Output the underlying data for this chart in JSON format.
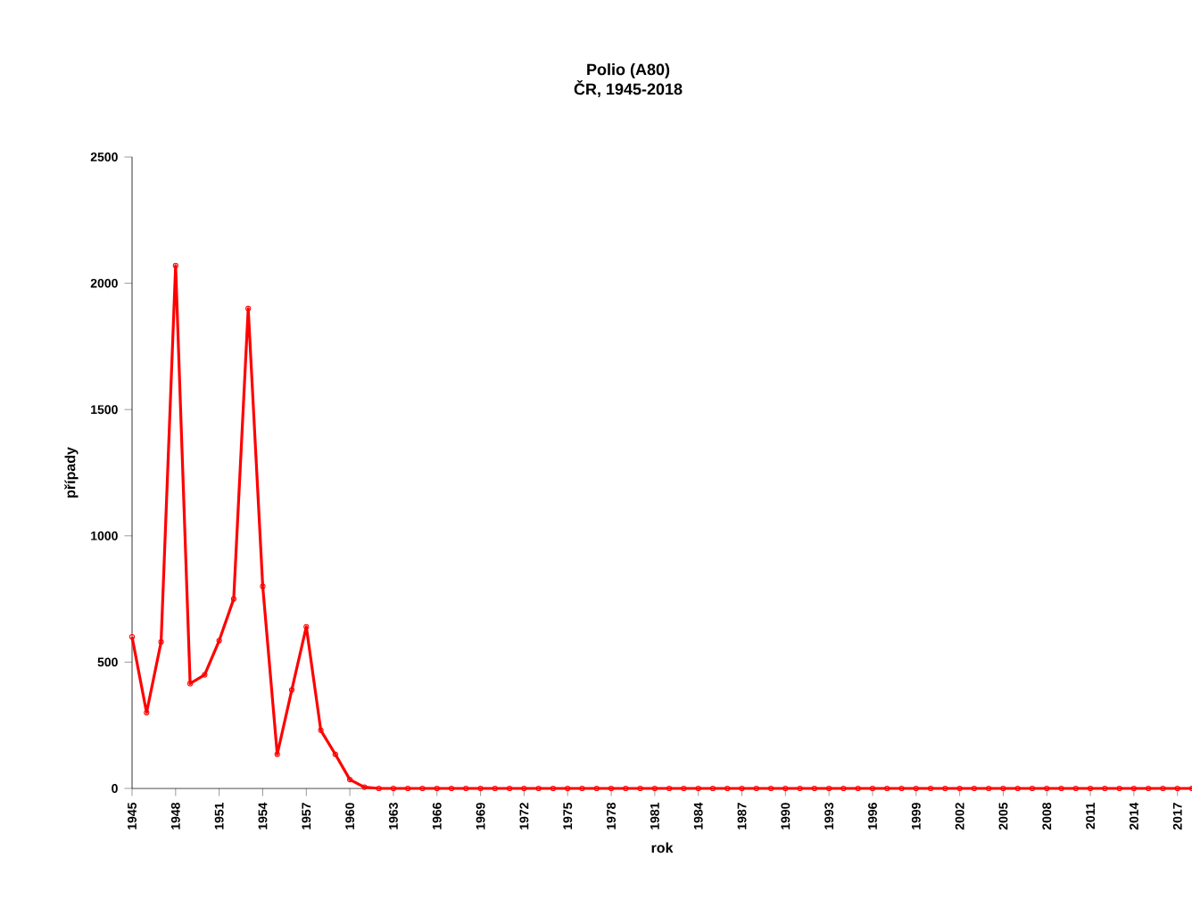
{
  "chart_data": {
    "type": "line",
    "title": "Polio (A80)",
    "subtitle": "ČR, 1945-2018",
    "xlabel": "rok",
    "ylabel": "případy",
    "x": [
      1945,
      1946,
      1947,
      1948,
      1949,
      1950,
      1951,
      1952,
      1953,
      1954,
      1955,
      1956,
      1957,
      1958,
      1959,
      1960,
      1961,
      1962,
      1963,
      1964,
      1965,
      1966,
      1967,
      1968,
      1969,
      1970,
      1971,
      1972,
      1973,
      1974,
      1975,
      1976,
      1977,
      1978,
      1979,
      1980,
      1981,
      1982,
      1983,
      1984,
      1985,
      1986,
      1987,
      1988,
      1989,
      1990,
      1991,
      1992,
      1993,
      1994,
      1995,
      1996,
      1997,
      1998,
      1999,
      2000,
      2001,
      2002,
      2003,
      2004,
      2005,
      2006,
      2007,
      2008,
      2009,
      2010,
      2011,
      2012,
      2013,
      2014,
      2015,
      2016,
      2017,
      2018
    ],
    "values": [
      600,
      300,
      580,
      2070,
      415,
      450,
      585,
      750,
      1900,
      800,
      135,
      390,
      640,
      230,
      135,
      35,
      5,
      0,
      0,
      0,
      0,
      0,
      0,
      0,
      0,
      0,
      0,
      0,
      0,
      0,
      0,
      0,
      0,
      0,
      0,
      0,
      0,
      0,
      0,
      0,
      0,
      0,
      0,
      0,
      0,
      0,
      0,
      0,
      0,
      0,
      0,
      0,
      0,
      0,
      0,
      0,
      0,
      0,
      0,
      0,
      0,
      0,
      0,
      0,
      0,
      0,
      0,
      0,
      0,
      0,
      0,
      0,
      0,
      0
    ],
    "color": "#ff0000",
    "marker": "circle",
    "line_style": "solid",
    "grid": false,
    "xlim": [
      1945,
      2018
    ],
    "xticks": [
      1945,
      1948,
      1951,
      1954,
      1957,
      1960,
      1963,
      1966,
      1969,
      1972,
      1975,
      1978,
      1981,
      1984,
      1987,
      1990,
      1993,
      1996,
      1999,
      2002,
      2005,
      2008,
      2011,
      2014,
      2017
    ],
    "ylim": [
      0,
      2500
    ],
    "yticks": [
      0,
      500,
      1000,
      1500,
      2000,
      2500
    ]
  }
}
